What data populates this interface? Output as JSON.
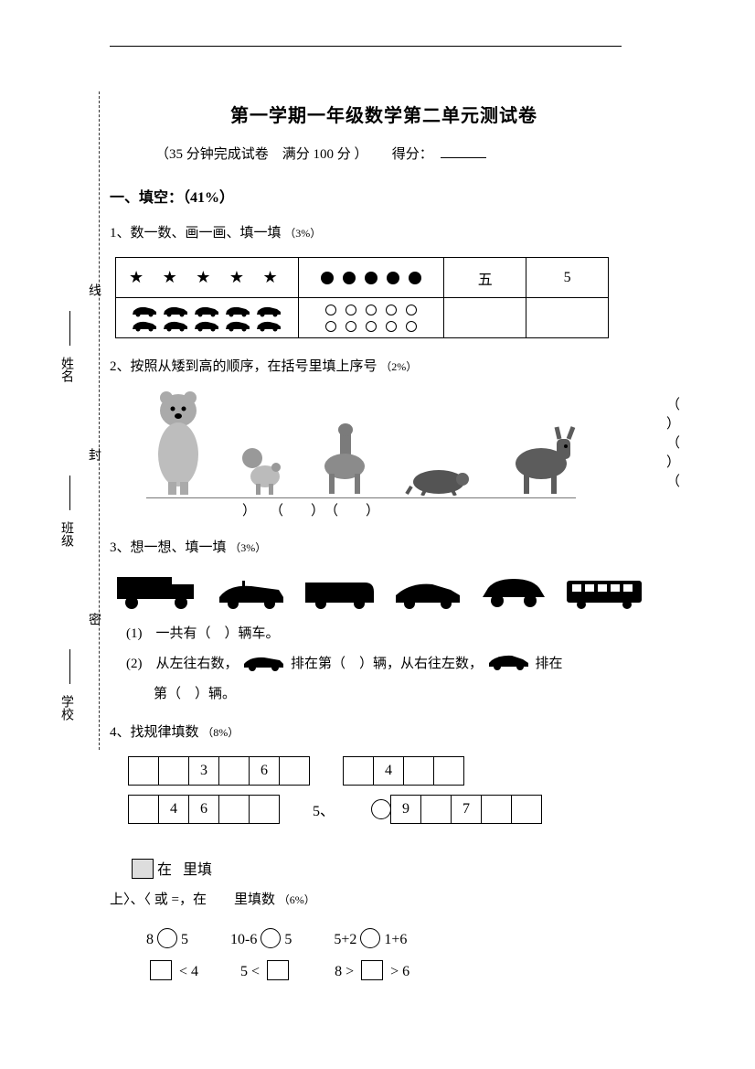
{
  "title": "第一学期一年级数学第二单元测试卷",
  "subtitle_a": "（35 分钟完成试卷",
  "subtitle_b": "满分 100 分 ）",
  "subtitle_c": "得分：",
  "bind": {
    "school": "学校",
    "class": "班级",
    "name": "姓名",
    "mi": "密",
    "feng": "封",
    "xian": "线"
  },
  "s1": {
    "heading": "一、填空：（41%）"
  },
  "q1": {
    "text": "1、数一数、画一画、填一填",
    "pct": "（3%）",
    "row1": {
      "stars": "★ ★ ★ ★ ★",
      "dots": 5,
      "cn": "五",
      "num": "5"
    },
    "row2": {
      "cars": 10,
      "hollow": 10,
      "cn": "",
      "num": ""
    }
  },
  "q2": {
    "text": "2、按照从矮到高的顺序，在括号里填上序号",
    "pct": "（2%）",
    "blank": "（　　）",
    "brackets_line": "　　　　　）　　（　　）　（　　）",
    "right_col": "（\n）\n（\n）\n（"
  },
  "q3": {
    "text": "3、想一想、填一填",
    "pct": "（3%）",
    "s1": "(1)　一共有（　）辆车。",
    "s2a": "(2)　从左往右数，",
    "s2b": " 排在第（　）辆，从右往左数，",
    "s2c": " 排在",
    "s2d": "第（　）辆。"
  },
  "q4": {
    "text": "4、找规律填数",
    "pct": "（8%）",
    "rowA": [
      "",
      "",
      "3",
      "",
      "6",
      ""
    ],
    "rowA2": [
      "",
      "4",
      "",
      ""
    ],
    "rowB": [
      "",
      "4",
      "6",
      "",
      ""
    ],
    "rowB_label": "5、",
    "rowC": [
      "9",
      "",
      "7",
      "",
      ""
    ],
    "tail": "在　　里填"
  },
  "q5": {
    "lead": "上〉、〈 或 =，在　　里填数",
    "pct": "（6%）",
    "r1": [
      {
        "a": "8",
        "b": "5",
        "type": "circ"
      },
      {
        "a": "10-6",
        "b": "5",
        "type": "circ"
      },
      {
        "a": "5+2",
        "b": "1+6",
        "type": "circ"
      }
    ],
    "r2": [
      {
        "pre": "",
        "op": "< 4",
        "type": "sq"
      },
      {
        "pre": "5 <",
        "op": "",
        "type": "sq"
      },
      {
        "pre": "8 >",
        "op": "> 6",
        "type": "sq"
      }
    ]
  },
  "colors": {
    "fg": "#000000",
    "bg": "#ffffff",
    "grey": "#888888"
  }
}
